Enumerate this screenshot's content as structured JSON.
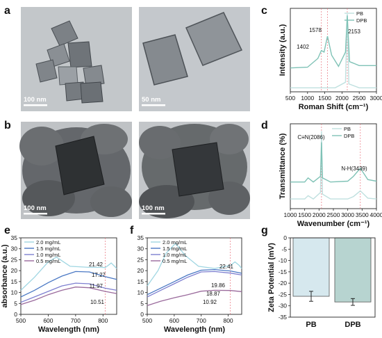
{
  "panels": {
    "a": {
      "label": "a",
      "scale_left": "100 nm",
      "scale_right": "50 nm"
    },
    "b": {
      "label": "b",
      "scale_left": "100 nm",
      "scale_right": "100 nm"
    },
    "c": {
      "label": "c"
    },
    "d": {
      "label": "d"
    },
    "e": {
      "label": "e"
    },
    "f": {
      "label": "f"
    },
    "g": {
      "label": "g"
    }
  },
  "colors": {
    "PB": "#bfe0df",
    "DPB": "#7fc2b6",
    "c2": "#9fd6e2",
    "c15": "#4a78c4",
    "c10": "#7d7fd0",
    "c05": "#9a6a9c",
    "ref_line": "#e8707a",
    "bar_PB": "#d6e8ee",
    "bar_DPB": "#b7d4d0"
  },
  "chart_data": [
    {
      "id": "c",
      "type": "line",
      "xlabel": "Roman Shift (cm⁻¹)",
      "ylabel": "Intensity (a.u.)",
      "xlim": [
        500,
        3000
      ],
      "xticks": [
        "500",
        "1000",
        "1500",
        "2000",
        "2500",
        "3000"
      ],
      "series": [
        {
          "name": "PB",
          "x": [
            500,
            1800,
            2100,
            2153,
            2200,
            2500,
            3000
          ],
          "y": [
            0.05,
            0.05,
            0.12,
            0.98,
            0.1,
            0.05,
            0.05
          ]
        },
        {
          "name": "DPB",
          "x": [
            500,
            1000,
            1300,
            1402,
            1480,
            1578,
            1700,
            1900,
            2100,
            2153,
            2220,
            2500,
            3000
          ],
          "y": [
            0.3,
            0.31,
            0.42,
            0.52,
            0.5,
            0.7,
            0.46,
            0.32,
            0.5,
            0.96,
            0.38,
            0.33,
            0.33
          ]
        }
      ],
      "annotations": [
        "1402",
        "1578",
        "2153"
      ],
      "legend": [
        "PB",
        "DPB"
      ],
      "legend_position": "top-right"
    },
    {
      "id": "d",
      "type": "line",
      "xlabel": "Wavenumber (cm⁻¹)",
      "ylabel": "Transmittance (%)",
      "xlim": [
        1000,
        4000
      ],
      "xticks": [
        "1000",
        "1500",
        "2000",
        "2500",
        "3000",
        "3500",
        "4000"
      ],
      "series": [
        {
          "name": "PB",
          "x": [
            1000,
            1500,
            1620,
            1800,
            2050,
            2086,
            2120,
            2400,
            3000,
            3200,
            3439,
            3700,
            4000
          ],
          "y": [
            0.12,
            0.12,
            0.16,
            0.12,
            0.2,
            0.96,
            0.18,
            0.12,
            0.12,
            0.15,
            0.22,
            0.13,
            0.12
          ]
        },
        {
          "name": "DPB",
          "x": [
            1000,
            1500,
            1620,
            1800,
            2050,
            2086,
            2120,
            2400,
            3000,
            3200,
            3439,
            3700,
            4000
          ],
          "y": [
            0.33,
            0.33,
            0.38,
            0.33,
            0.4,
            0.82,
            0.38,
            0.33,
            0.34,
            0.4,
            0.5,
            0.36,
            0.34
          ]
        }
      ],
      "annotations": [
        "C≡N(2086)",
        "N-H(3439)"
      ],
      "legend": [
        "PB",
        "DPB"
      ],
      "legend_position": "top-center"
    },
    {
      "id": "e",
      "type": "line",
      "xlabel": "Wavelength (nm)",
      "ylabel": "absorbance (a.u.)",
      "xlim": [
        500,
        850
      ],
      "ylim": [
        0,
        35
      ],
      "xticks": [
        "500",
        "600",
        "700",
        "800"
      ],
      "yticks": [
        "0",
        "5",
        "10",
        "15",
        "20",
        "25",
        "30",
        "35"
      ],
      "series": [
        {
          "name": "2.0 mg/mL",
          "x": [
            500,
            550,
            600,
            630,
            680,
            750,
            790,
            808,
            820,
            830,
            850
          ],
          "y": [
            11,
            17,
            24,
            26.2,
            22,
            21.5,
            21.5,
            21.42,
            22.5,
            23.5,
            21
          ]
        },
        {
          "name": "1.5 mg/mL",
          "x": [
            500,
            550,
            600,
            650,
            700,
            750,
            808,
            850
          ],
          "y": [
            8,
            11,
            14.5,
            17.5,
            19.6,
            19.4,
            17.27,
            16
          ]
        },
        {
          "name": "1.0 mg/mL",
          "x": [
            500,
            550,
            600,
            650,
            700,
            750,
            808,
            850
          ],
          "y": [
            5.5,
            8,
            10.5,
            13,
            14.3,
            14,
            11.97,
            11
          ]
        },
        {
          "name": "0.5 mg/mL",
          "x": [
            500,
            550,
            600,
            650,
            700,
            750,
            808,
            850
          ],
          "y": [
            4.5,
            6.5,
            9,
            11,
            12.5,
            12.2,
            10.51,
            9.5
          ]
        }
      ],
      "annotations": [
        "21.42",
        "17.27",
        "11.97",
        "10.51"
      ],
      "legend_position": "top-left"
    },
    {
      "id": "f",
      "type": "line",
      "xlabel": "Wavelength (nm)",
      "ylabel": "",
      "xlim": [
        500,
        850
      ],
      "ylim": [
        0,
        35
      ],
      "xticks": [
        "500",
        "600",
        "700",
        "800"
      ],
      "yticks": [
        "0",
        "5",
        "10",
        "15",
        "20",
        "25",
        "30",
        "35"
      ],
      "series": [
        {
          "name": "2.0 mg/mL",
          "x": [
            500,
            540,
            570,
            605,
            640,
            690,
            750,
            808,
            825,
            840,
            850
          ],
          "y": [
            13,
            20,
            28,
            32.5,
            27,
            22,
            21,
            22.41,
            24,
            22.5,
            21
          ]
        },
        {
          "name": "1.5 mg/mL",
          "x": [
            500,
            550,
            600,
            650,
            700,
            750,
            808,
            850
          ],
          "y": [
            9,
            12,
            15,
            18,
            20.2,
            20.5,
            19.86,
            18.8
          ]
        },
        {
          "name": "1.0 mg/mL",
          "x": [
            500,
            550,
            600,
            650,
            700,
            750,
            808,
            850
          ],
          "y": [
            8,
            11,
            14,
            17,
            19.4,
            19.6,
            18.87,
            18
          ]
        },
        {
          "name": "0.5 mg/mL",
          "x": [
            500,
            550,
            600,
            650,
            700,
            750,
            808,
            850
          ],
          "y": [
            4,
            6,
            7.6,
            9,
            10.6,
            11,
            10.92,
            10.4
          ]
        }
      ],
      "annotations": [
        "22.41",
        "19.86",
        "18.87",
        "10.92"
      ],
      "legend_position": "top-left"
    },
    {
      "id": "g",
      "type": "bar",
      "xlabel": "",
      "ylabel": "Zeta Potential (mV)",
      "ylim": [
        -35,
        0
      ],
      "yticks": [
        "0",
        "-5",
        "-10",
        "-15",
        "-20",
        "-25",
        "-30",
        "-35"
      ],
      "categories": [
        "PB",
        "DPB"
      ],
      "values": [
        -25.8,
        -28.3
      ],
      "errors": [
        2.2,
        1.5
      ]
    }
  ]
}
